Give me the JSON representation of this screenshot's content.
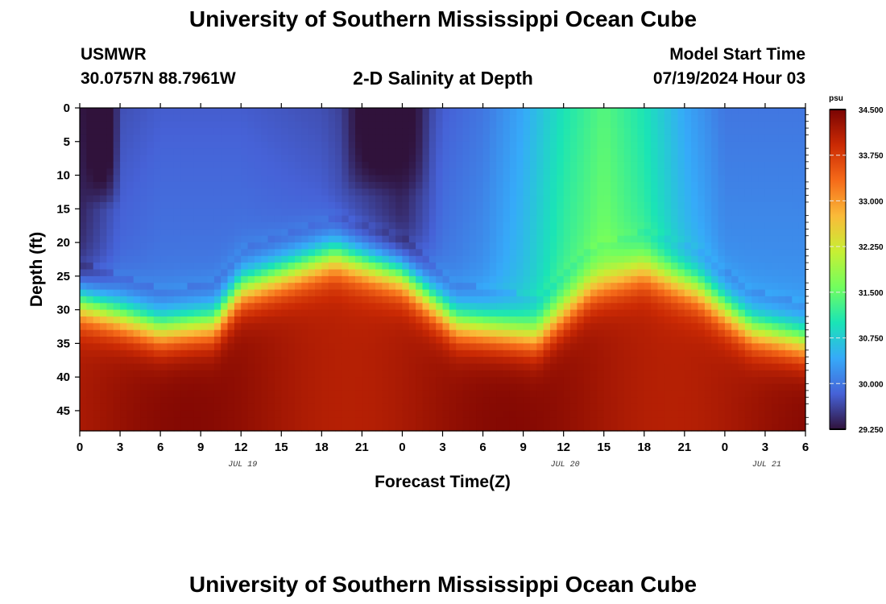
{
  "header": {
    "title": "University of Southern Mississippi Ocean Cube",
    "station": "USMWR",
    "coords": "30.0757N  88.7961W",
    "model_label": "Model Start Time",
    "model_time": "07/19/2024 Hour 03",
    "footer_title": "University of Southern Mississippi Ocean Cube"
  },
  "chart_data": {
    "type": "heatmap",
    "title": "2-D Salinity at Depth",
    "xlabel": "Forecast Time(Z)",
    "ylabel": "Depth (ft)",
    "x_tick_labels": [
      "0",
      "3",
      "6",
      "9",
      "12",
      "15",
      "18",
      "21",
      "0",
      "3",
      "6",
      "9",
      "12",
      "15",
      "18",
      "21",
      "0",
      "3",
      "6"
    ],
    "x_range_hours": [
      0,
      54
    ],
    "date_labels": [
      {
        "label": "JUL 19",
        "hour": 12
      },
      {
        "label": "JUL 20",
        "hour": 36
      },
      {
        "label": "JUL 21",
        "hour": 51
      }
    ],
    "y_tick_labels": [
      "0",
      "5",
      "10",
      "15",
      "20",
      "25",
      "30",
      "35",
      "40",
      "45"
    ],
    "y_ticks": [
      0,
      5,
      10,
      15,
      20,
      25,
      30,
      35,
      40,
      45
    ],
    "y_range": [
      0,
      48
    ],
    "colorbar": {
      "unit": "psu",
      "min": 29.25,
      "max": 34.5,
      "tick_labels": [
        "34.500",
        "33.750",
        "33.000",
        "32.250",
        "31.500",
        "30.750",
        "30.000",
        "29.250"
      ],
      "tick_values": [
        34.5,
        33.75,
        33.0,
        32.25,
        31.5,
        30.75,
        30.0,
        29.25
      ],
      "colors": [
        "#30123b",
        "#4662d7",
        "#36aaf9",
        "#1ae4b6",
        "#72fe5e",
        "#c7ef34",
        "#fabb39",
        "#f66b19",
        "#cb2a04",
        "#7a0403"
      ]
    },
    "halocline_depth_ft": [
      {
        "hour": 0,
        "depth": 29
      },
      {
        "hour": 6,
        "depth": 33
      },
      {
        "hour": 10,
        "depth": 32
      },
      {
        "hour": 12,
        "depth": 27
      },
      {
        "hour": 19,
        "depth": 22
      },
      {
        "hour": 24,
        "depth": 25
      },
      {
        "hour": 28,
        "depth": 32
      },
      {
        "hour": 34,
        "depth": 34
      },
      {
        "hour": 38,
        "depth": 27
      },
      {
        "hour": 42,
        "depth": 24
      },
      {
        "hour": 46,
        "depth": 27
      },
      {
        "hour": 50,
        "depth": 33
      },
      {
        "hour": 54,
        "depth": 35
      }
    ],
    "surface_salinity_psu": [
      {
        "hour": 0,
        "value": 29.25
      },
      {
        "hour": 3,
        "value": 29.7
      },
      {
        "hour": 6,
        "value": 29.8
      },
      {
        "hour": 12,
        "value": 29.8
      },
      {
        "hour": 18,
        "value": 29.7
      },
      {
        "hour": 22,
        "value": 29.4
      },
      {
        "hour": 24,
        "value": 29.25
      },
      {
        "hour": 27,
        "value": 29.8
      },
      {
        "hour": 30,
        "value": 30.0
      },
      {
        "hour": 33,
        "value": 30.4
      },
      {
        "hour": 36,
        "value": 31.0
      },
      {
        "hour": 39,
        "value": 31.4
      },
      {
        "hour": 42,
        "value": 31.0
      },
      {
        "hour": 45,
        "value": 30.4
      },
      {
        "hour": 48,
        "value": 30.0
      },
      {
        "hour": 54,
        "value": 30.0
      }
    ],
    "low_salinity_patches": [
      {
        "hour_start": 0,
        "hour_end": 3,
        "depth_top": 0,
        "depth_bottom": 15,
        "value": 29.25
      },
      {
        "hour_start": 19.5,
        "hour_end": 26,
        "depth_top": 0,
        "depth_bottom": 13,
        "value": 29.25
      }
    ],
    "bottom_max_salinity_psu": 34.5
  }
}
